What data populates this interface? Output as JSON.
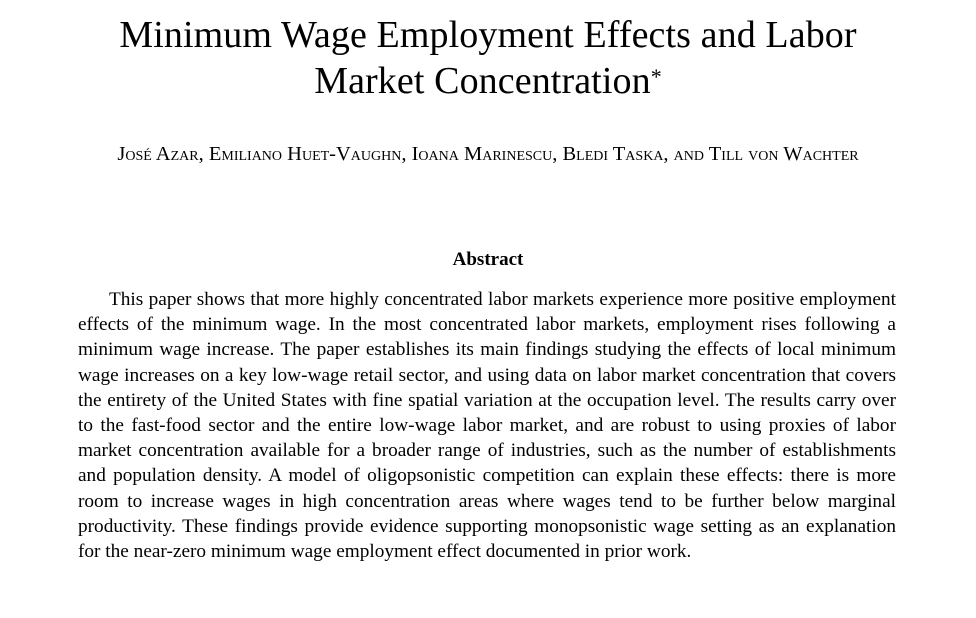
{
  "paper": {
    "title_line1": "Minimum Wage Employment Effects and Labor",
    "title_line2": "Market Concentration",
    "title_footnote_mark": "*",
    "authors": "José Azar, Emiliano Huet-Vaughn, Ioana Marinescu, Bledi Taska, and Till von Wachter",
    "abstract_heading": "Abstract",
    "abstract_text": "This paper shows that more highly concentrated labor markets experience more positive employment effects of the minimum wage. In the most concentrated labor markets, employment rises following a minimum wage increase. The paper establishes its main findings studying the effects of local minimum wage increases on a key low-wage retail sector, and using data on labor market concentration that covers the entirety of the United States with fine spatial variation at the occupation level. The results carry over to the fast-food sector and the entire low-wage labor market, and are robust to using proxies of labor market concentration available for a broader range of industries, such as the number of establishments and population density. A model of oligopsonistic competition can explain these effects: there is more room to increase wages in high concentration areas where wages tend to be further below marginal productivity. These findings provide evidence supporting monopsonistic wage setting as an explanation for the near-zero minimum wage employment effect documented in prior work."
  }
}
